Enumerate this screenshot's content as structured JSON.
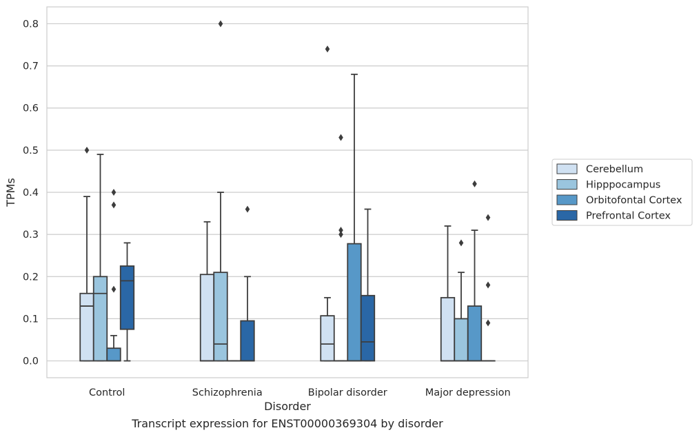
{
  "caption": "Transcript expression for ENST00000369304 by disorder",
  "chart_data": {
    "type": "box",
    "xlabel": "Disorder",
    "ylabel": "TPMs",
    "ylim": [
      -0.04,
      0.84
    ],
    "yticks": [
      0.0,
      0.1,
      0.2,
      0.3,
      0.4,
      0.5,
      0.6,
      0.7,
      0.8
    ],
    "ytick_labels": [
      "0.0",
      "0.1",
      "0.2",
      "0.3",
      "0.4",
      "0.5",
      "0.6",
      "0.7",
      "0.8"
    ],
    "grid": true,
    "legend_position": "right",
    "categories": [
      "Control",
      "Schizophrenia",
      "Bipolar disorder",
      "Major depression"
    ],
    "series": [
      {
        "name": "Cerebellum",
        "color": "#d0e1f2",
        "boxes": [
          {
            "q1": 0.0,
            "median": 0.13,
            "q3": 0.16,
            "whisker_low": 0.0,
            "whisker_high": 0.39,
            "outliers": [
              0.5
            ]
          },
          {
            "q1": 0.0,
            "median": 0.0,
            "q3": 0.205,
            "whisker_low": 0.0,
            "whisker_high": 0.33,
            "outliers": []
          },
          {
            "q1": 0.0,
            "median": 0.04,
            "q3": 0.107,
            "whisker_low": 0.0,
            "whisker_high": 0.15,
            "outliers": [
              0.74
            ]
          },
          {
            "q1": 0.0,
            "median": 0.0,
            "q3": 0.15,
            "whisker_low": 0.0,
            "whisker_high": 0.32,
            "outliers": []
          }
        ]
      },
      {
        "name": "Hipppocampus",
        "color": "#9ac5de",
        "boxes": [
          {
            "q1": 0.0,
            "median": 0.16,
            "q3": 0.2,
            "whisker_low": 0.0,
            "whisker_high": 0.49,
            "outliers": []
          },
          {
            "q1": 0.0,
            "median": 0.04,
            "q3": 0.21,
            "whisker_low": 0.0,
            "whisker_high": 0.4,
            "outliers": [
              0.8
            ]
          },
          {
            "q1": 0.0,
            "median": 0.0,
            "q3": 0.0,
            "whisker_low": 0.0,
            "whisker_high": 0.0,
            "outliers": [
              0.53,
              0.31,
              0.3
            ]
          },
          {
            "q1": 0.0,
            "median": 0.0,
            "q3": 0.1,
            "whisker_low": 0.0,
            "whisker_high": 0.21,
            "outliers": [
              0.28
            ]
          }
        ]
      },
      {
        "name": "Orbitofontal Cortex",
        "color": "#5798c8",
        "boxes": [
          {
            "q1": 0.0,
            "median": 0.0,
            "q3": 0.03,
            "whisker_low": 0.0,
            "whisker_high": 0.06,
            "outliers": [
              0.4,
              0.37,
              0.17
            ]
          },
          {
            "q1": 0.0,
            "median": 0.0,
            "q3": 0.0,
            "whisker_low": 0.0,
            "whisker_high": 0.0,
            "outliers": []
          },
          {
            "q1": 0.0,
            "median": 0.0,
            "q3": 0.278,
            "whisker_low": 0.0,
            "whisker_high": 0.68,
            "outliers": []
          },
          {
            "q1": 0.0,
            "median": 0.0,
            "q3": 0.13,
            "whisker_low": 0.0,
            "whisker_high": 0.31,
            "outliers": [
              0.42
            ]
          }
        ]
      },
      {
        "name": "Prefrontal Cortex",
        "color": "#2a67a6",
        "boxes": [
          {
            "q1": 0.075,
            "median": 0.19,
            "q3": 0.225,
            "whisker_low": 0.0,
            "whisker_high": 0.28,
            "outliers": []
          },
          {
            "q1": 0.0,
            "median": 0.0,
            "q3": 0.095,
            "whisker_low": 0.0,
            "whisker_high": 0.2,
            "outliers": [
              0.36
            ]
          },
          {
            "q1": 0.0,
            "median": 0.045,
            "q3": 0.155,
            "whisker_low": 0.0,
            "whisker_high": 0.36,
            "outliers": []
          },
          {
            "q1": 0.0,
            "median": 0.0,
            "q3": 0.0,
            "whisker_low": 0.0,
            "whisker_high": 0.0,
            "outliers": [
              0.34,
              0.18,
              0.09
            ]
          }
        ]
      }
    ]
  }
}
